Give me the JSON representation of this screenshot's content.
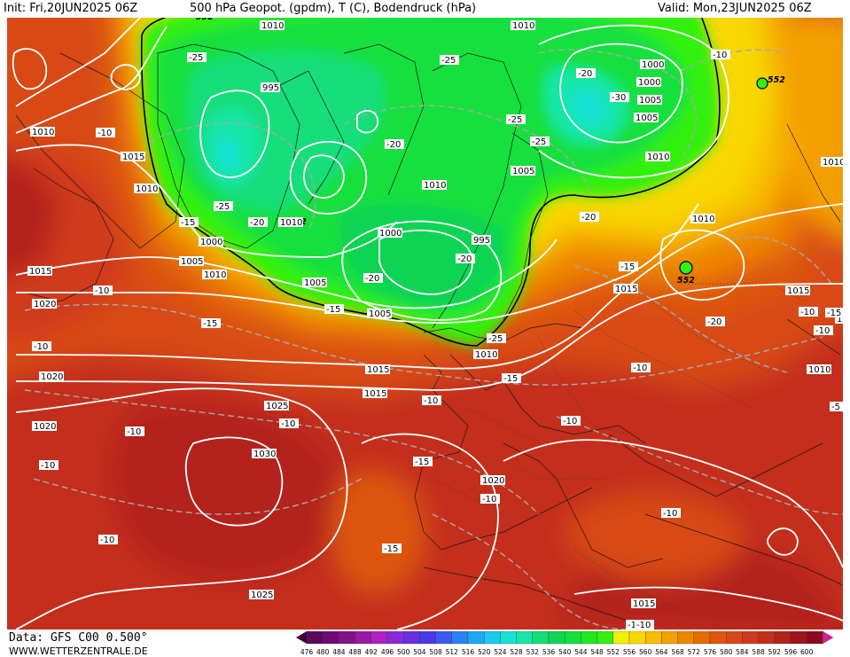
{
  "header": {
    "init": "Init: Fri,20JUN2025 06Z",
    "title": "500 hPa Geopot. (gpdm), T (C), Bodendruck (hPa)",
    "valid": "Valid: Mon,23JUN2025 06Z"
  },
  "footer": {
    "data_source": "Data: GFS C00 0.500°",
    "website": "WWW.WETTERZENTRALE.DE"
  },
  "colors": {
    "c476": "#5a0a58",
    "c480": "#6e0a72",
    "c484": "#84108a",
    "c488": "#9a18a6",
    "c492": "#b020c0",
    "c496": "#8a2ad6",
    "c500": "#6a30e0",
    "c504": "#4a38ea",
    "c508": "#3a5af0",
    "c512": "#2a82f4",
    "c516": "#20a6f4",
    "c520": "#1ccaf0",
    "c524": "#18e2d4",
    "c528": "#18e6a6",
    "c532": "#14de7a",
    "c536": "#10d452",
    "c540": "#12e03e",
    "c544": "#20e820",
    "c548": "#32f010",
    "c552": "#f0f000",
    "c556": "#f8d800",
    "c560": "#f8bc00",
    "c564": "#f4a000",
    "c568": "#ee8600",
    "c572": "#e46c00",
    "c576": "#de5610",
    "c580": "#d84818",
    "c584": "#d03a1c",
    "c588": "#c42e1c",
    "c592": "#b4201c",
    "c596": "#a0141c",
    "c600": "#8a0a20",
    "isobar": "#ffffff",
    "isotherm": "#a8a8a8"
  },
  "legend": {
    "labels": [
      "476",
      "480",
      "484",
      "488",
      "492",
      "496",
      "500",
      "504",
      "508",
      "512",
      "516",
      "520",
      "524",
      "528",
      "532",
      "536",
      "540",
      "544",
      "548",
      "552",
      "556",
      "560",
      "564",
      "568",
      "572",
      "576",
      "580",
      "584",
      "588",
      "592",
      "596",
      "600"
    ]
  },
  "contour_labels": {
    "geopotential": [
      "552",
      "552",
      "552",
      "552"
    ],
    "pressure": [
      "1010",
      "1010",
      "995",
      "1000",
      "1000",
      "1005",
      "1010",
      "1010",
      "1015",
      "1010",
      "1005",
      "1010",
      "1010",
      "1000",
      "1010",
      "1005",
      "1015",
      "1015",
      "1020",
      "1005",
      "1005",
      "1000",
      "995",
      "1005",
      "1010",
      "1010",
      "1015",
      "1020",
      "1015",
      "1010",
      "1010",
      "1015",
      "1020",
      "1020",
      "1020",
      "1025",
      "1030",
      "1025",
      "1020",
      "1015"
    ],
    "temperature": [
      "-25",
      "-25",
      "-20",
      "-30",
      "-25",
      "-25",
      "-20",
      "-15",
      "-25",
      "-15",
      "-20",
      "-20",
      "-20",
      "-20",
      "-15",
      "-15",
      "-20",
      "-15",
      "-10",
      "-10",
      "-10",
      "-10",
      "-10",
      "-10",
      "-15",
      "-25",
      "-15",
      "-10",
      "-10",
      "-10",
      "-10",
      "-10",
      "-10",
      "-15",
      "-10",
      "-10",
      "-10",
      "-5",
      "-10",
      "-10",
      "-5"
    ]
  }
}
